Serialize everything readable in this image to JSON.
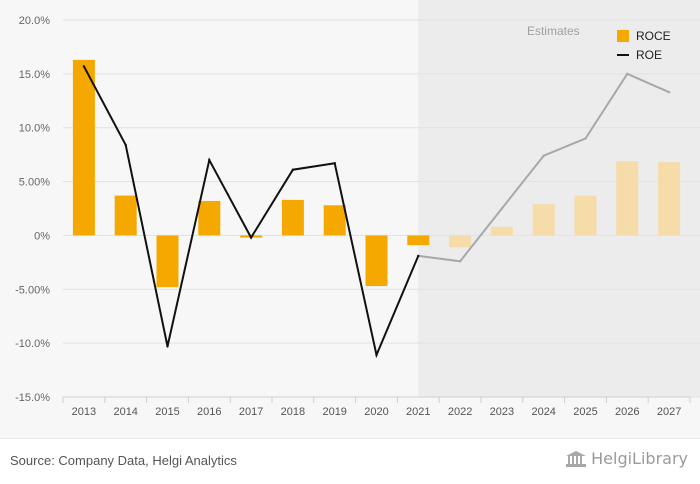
{
  "chart_data": {
    "type": "bar",
    "categories": [
      "2013",
      "2014",
      "2015",
      "2016",
      "2017",
      "2018",
      "2019",
      "2020",
      "2021",
      "2022",
      "2023",
      "2024",
      "2025",
      "2026",
      "2027"
    ],
    "series": [
      {
        "name": "ROCE",
        "kind": "bar",
        "color": "#f5a800",
        "estimate_color": "#f6dca8",
        "values": [
          16.3,
          3.7,
          -4.8,
          3.2,
          -0.2,
          3.3,
          2.8,
          -4.7,
          -0.9,
          -1.1,
          0.8,
          2.9,
          3.7,
          6.9,
          6.8
        ]
      },
      {
        "name": "ROE",
        "kind": "line",
        "color": "#111111",
        "estimate_color": "#a8a8a8",
        "values": [
          15.7,
          8.4,
          -10.3,
          7.0,
          -0.2,
          6.1,
          6.7,
          -11.1,
          -1.9,
          -2.4,
          2.5,
          7.4,
          9.0,
          15.0,
          13.3
        ]
      }
    ],
    "estimates_from_index": 9,
    "estimates_label": "Estimates",
    "y_ticks": [
      20,
      15,
      10,
      5,
      0,
      -5,
      -10,
      -15
    ],
    "y_tick_labels": [
      "20.0%",
      "15.0%",
      "10.0%",
      "5.00%",
      "0%",
      "-5.00%",
      "-10.0%",
      "-15.0%"
    ],
    "ylim": [
      -15,
      20
    ],
    "title": "",
    "xlabel": "",
    "ylabel": "",
    "legend_position": "top-right",
    "grid": true
  },
  "footer": {
    "source": "Source: Company Data, Helgi Analytics",
    "brand": "HelgiLibrary"
  }
}
